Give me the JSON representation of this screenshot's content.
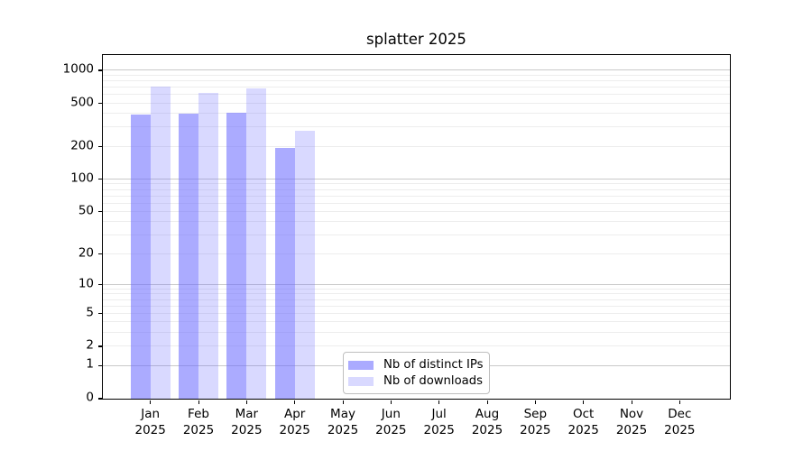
{
  "chart_data": {
    "type": "bar",
    "title": "splatter 2025",
    "x_axis": {
      "months": [
        "Jan",
        "Feb",
        "Mar",
        "Apr",
        "May",
        "Jun",
        "Jul",
        "Aug",
        "Sep",
        "Oct",
        "Nov",
        "Dec"
      ],
      "year_label": "2025"
    },
    "y_axis": {
      "scale": "log1p",
      "tick_values": [
        0,
        1,
        2,
        5,
        10,
        20,
        50,
        100,
        200,
        500,
        1000
      ],
      "major_gridlines": [
        1,
        10,
        100,
        1000
      ],
      "minor_gridlines": [
        2,
        3,
        4,
        5,
        6,
        7,
        8,
        9,
        20,
        30,
        40,
        50,
        60,
        70,
        80,
        90,
        200,
        300,
        400,
        500,
        600,
        700,
        800,
        900
      ],
      "axis_top_value": 1360,
      "axis_bottom_value": 0
    },
    "series": [
      {
        "name": "Nb of distinct IPs",
        "color": "rgba(102,102,255,0.55)",
        "values": [
          395,
          400,
          410,
          197,
          null,
          null,
          null,
          null,
          null,
          null,
          null,
          null
        ]
      },
      {
        "name": "Nb of downloads",
        "color": "rgba(102,102,255,0.25)",
        "values": [
          715,
          620,
          690,
          278,
          null,
          null,
          null,
          null,
          null,
          null,
          null,
          null
        ]
      }
    ],
    "legend_position": "lower center",
    "grid": "on",
    "background_color": "#ffffff",
    "axis_frame_color": "#000000"
  }
}
